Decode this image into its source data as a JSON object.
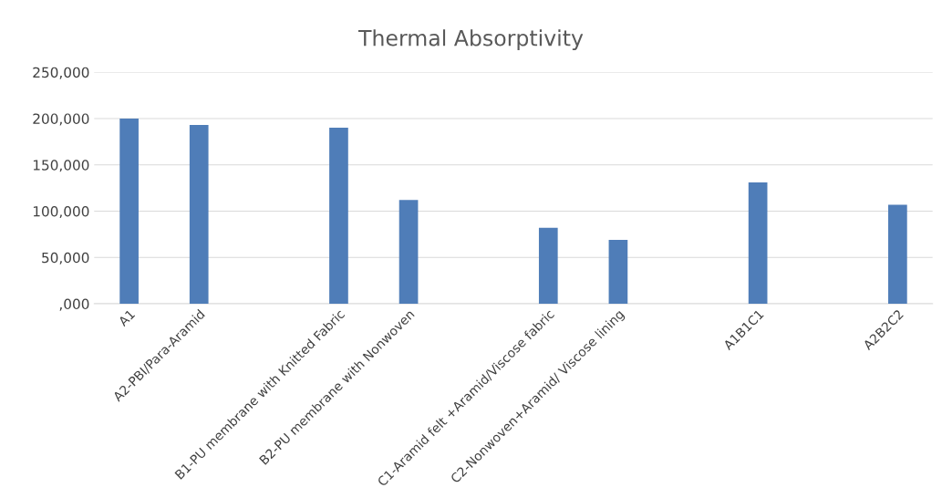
{
  "chart_data": {
    "type": "bar",
    "title": "Thermal Absorptivity",
    "categories": [
      "A1",
      "A2-PBI/Para-Aramid",
      null,
      "B1-PU membrane with Knitted Fabric",
      "B2-PU membrane with Nonwoven",
      null,
      "C1-Aramid felt +Aramid/Viscose fabric",
      "C2-Nonwoven+Aramid/ Viscose lining",
      null,
      "A1B1C1",
      null,
      "A2B2C2"
    ],
    "values": [
      200000,
      193000,
      null,
      190000,
      112000,
      null,
      82000,
      69000,
      null,
      131000,
      null,
      107000
    ],
    "color": "#4f7db8",
    "ylim": [
      0,
      250000
    ],
    "yticks": [
      {
        "value": 0,
        "label": ",000"
      },
      {
        "value": 50000,
        "label": "50,000"
      },
      {
        "value": 100000,
        "label": "100,000"
      },
      {
        "value": 150000,
        "label": "150,000"
      },
      {
        "value": 200000,
        "label": "200,000"
      },
      {
        "value": 250000,
        "label": "250,000"
      }
    ],
    "grid": "y"
  }
}
